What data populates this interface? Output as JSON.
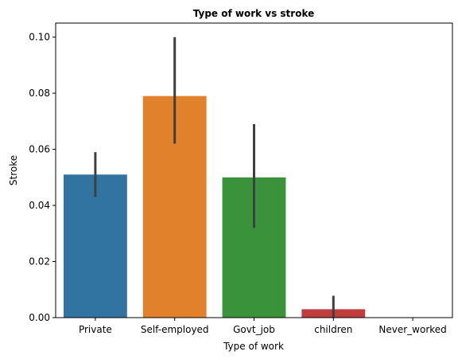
{
  "chart_data": {
    "type": "bar",
    "title": "Type of work vs stroke",
    "xlabel": "Type of work",
    "ylabel": "Stroke",
    "categories": [
      "Private",
      "Self-employed",
      "Govt_job",
      "children",
      "Never_worked"
    ],
    "values": [
      0.051,
      0.079,
      0.05,
      0.003,
      0.0
    ],
    "error_bars": [
      {
        "low": 0.043,
        "high": 0.059
      },
      {
        "low": 0.062,
        "high": 0.1
      },
      {
        "low": 0.032,
        "high": 0.069
      },
      {
        "low": 0.0,
        "high": 0.0078
      },
      {
        "low": 0.0,
        "high": 0.0
      }
    ],
    "colors": [
      "#3274a1",
      "#e1812c",
      "#3a923a",
      "#c03d3e",
      "#9372b2"
    ],
    "error_color": "#3f3f3f",
    "ylim": [
      0,
      0.105
    ],
    "yticks": [
      "0.00",
      "0.02",
      "0.04",
      "0.06",
      "0.08",
      "0.10"
    ],
    "ytick_values": [
      0.0,
      0.02,
      0.04,
      0.06,
      0.08,
      0.1
    ],
    "grid": false,
    "legend": "none"
  }
}
